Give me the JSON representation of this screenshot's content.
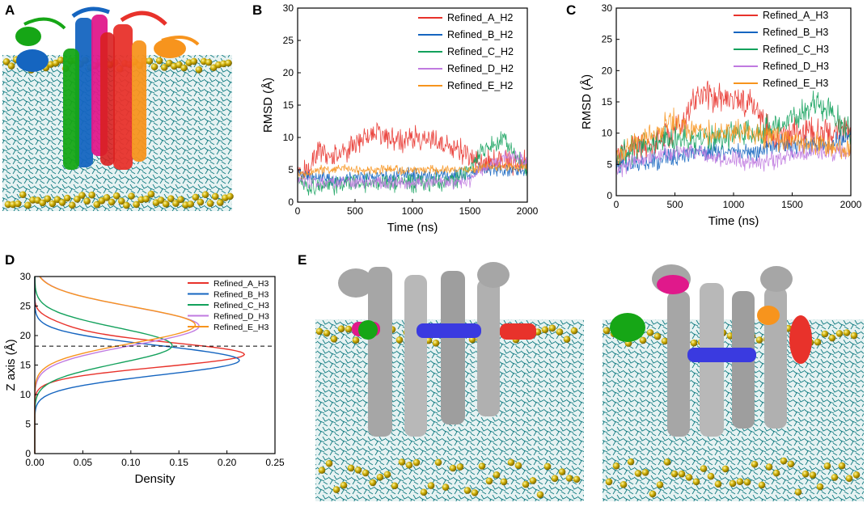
{
  "panels": {
    "a": {
      "label": "A"
    },
    "b": {
      "label": "B"
    },
    "c": {
      "label": "C"
    },
    "d": {
      "label": "D"
    },
    "e": {
      "label": "E"
    }
  },
  "series_colors": [
    "#e8322b",
    "#1565c0",
    "#13a15c",
    "#c07ae0",
    "#f7941d"
  ],
  "chart_data": [
    {
      "id": "b",
      "type": "line",
      "xlabel": "Time (ns)",
      "ylabel": "RMSD (Å)",
      "xlim": [
        0,
        2000
      ],
      "ylim": [
        0,
        30
      ],
      "xticks": [
        "0",
        "500",
        "1000",
        "1500",
        "2000"
      ],
      "yticks": [
        "0",
        "5",
        "10",
        "15",
        "20",
        "25",
        "30"
      ],
      "legend_position": "top-right",
      "series": [
        {
          "name": "Refined_A_H2",
          "color": "#e8322b",
          "x": [
            0,
            100,
            200,
            300,
            400,
            500,
            600,
            700,
            800,
            900,
            1000,
            1100,
            1200,
            1300,
            1400,
            1500,
            1600,
            1700,
            1800,
            1900,
            2000
          ],
          "values": [
            4,
            5.5,
            8,
            7,
            8,
            9,
            10,
            11,
            10,
            9.5,
            10,
            10,
            9.5,
            9,
            8,
            7,
            6,
            6,
            6.5,
            6,
            6
          ],
          "noise": 1.6
        },
        {
          "name": "Refined_B_H2",
          "color": "#1565c0",
          "x": [
            0,
            100,
            200,
            300,
            400,
            500,
            600,
            700,
            800,
            900,
            1000,
            1100,
            1200,
            1300,
            1400,
            1500,
            1600,
            1700,
            1800,
            1900,
            2000
          ],
          "values": [
            5,
            4,
            4,
            3.5,
            3.5,
            4,
            4,
            4,
            4,
            4.5,
            4,
            4,
            4,
            4,
            4,
            4.5,
            5,
            5,
            5,
            5,
            5
          ],
          "noise": 0.9
        },
        {
          "name": "Refined_C_H2",
          "color": "#13a15c",
          "x": [
            0,
            100,
            200,
            300,
            400,
            500,
            600,
            700,
            800,
            900,
            1000,
            1100,
            1200,
            1300,
            1400,
            1500,
            1600,
            1700,
            1800,
            1900,
            2000
          ],
          "values": [
            3,
            2.5,
            2.5,
            2.5,
            3,
            3,
            3,
            3,
            3,
            3,
            3,
            3,
            3,
            3,
            3.5,
            5,
            8,
            9,
            9.5,
            7,
            5
          ],
          "noise": 1.2
        },
        {
          "name": "Refined_D_H2",
          "color": "#c07ae0",
          "x": [
            0,
            100,
            200,
            300,
            400,
            500,
            600,
            700,
            800,
            900,
            1000,
            1100,
            1200,
            1300,
            1400,
            1500,
            1600,
            1700,
            1800,
            1900,
            2000
          ],
          "values": [
            3.5,
            3,
            3,
            3,
            3,
            3,
            3,
            3,
            3,
            3,
            3,
            3,
            3,
            3,
            3,
            3.5,
            5,
            6,
            7,
            7,
            6
          ],
          "noise": 0.9
        },
        {
          "name": "Refined_E_H2",
          "color": "#f7941d",
          "x": [
            0,
            100,
            200,
            300,
            400,
            500,
            600,
            700,
            800,
            900,
            1000,
            1100,
            1200,
            1300,
            1400,
            1500,
            1600,
            1700,
            1800,
            1900,
            2000
          ],
          "values": [
            4.5,
            4.5,
            5,
            5,
            5.5,
            5,
            5,
            5,
            5,
            5,
            5,
            5,
            5,
            5,
            5,
            5,
            5.5,
            5.5,
            5.5,
            5.5,
            5.5
          ],
          "noise": 0.6
        }
      ]
    },
    {
      "id": "c",
      "type": "line",
      "xlabel": "Time (ns)",
      "ylabel": "RMSD (Å)",
      "xlim": [
        0,
        2000
      ],
      "ylim": [
        0,
        30
      ],
      "xticks": [
        "0",
        "500",
        "1000",
        "1500",
        "2000"
      ],
      "yticks": [
        "0",
        "5",
        "10",
        "15",
        "20",
        "25",
        "30"
      ],
      "legend_position": "top-right",
      "series": [
        {
          "name": "Refined_A_H3",
          "color": "#e8322b",
          "x": [
            0,
            100,
            200,
            300,
            400,
            500,
            600,
            700,
            800,
            900,
            1000,
            1100,
            1200,
            1300,
            1400,
            1500,
            1600,
            1700,
            1800,
            1900,
            2000
          ],
          "values": [
            6,
            8,
            8,
            8,
            9,
            10,
            13,
            16,
            16,
            16,
            16,
            15,
            14,
            10,
            9,
            10,
            10,
            10,
            10,
            11,
            10
          ],
          "noise": 2.0
        },
        {
          "name": "Refined_B_H3",
          "color": "#1565c0",
          "x": [
            0,
            100,
            200,
            300,
            400,
            500,
            600,
            700,
            800,
            900,
            1000,
            1100,
            1200,
            1300,
            1400,
            1500,
            1600,
            1700,
            1800,
            1900,
            2000
          ],
          "values": [
            4,
            5,
            5,
            5.5,
            6,
            6,
            6.5,
            7,
            7,
            7,
            7,
            7,
            7,
            8,
            8,
            8,
            8,
            8,
            8,
            9,
            10
          ],
          "noise": 1.3
        },
        {
          "name": "Refined_C_H3",
          "color": "#13a15c",
          "x": [
            0,
            100,
            200,
            300,
            400,
            500,
            600,
            700,
            800,
            900,
            1000,
            1100,
            1200,
            1300,
            1400,
            1500,
            1600,
            1700,
            1800,
            1900,
            2000
          ],
          "values": [
            6,
            7,
            8,
            8,
            9,
            9,
            9,
            9,
            9,
            9,
            10,
            10,
            10,
            11,
            12,
            12,
            14,
            15,
            14,
            12,
            10
          ],
          "noise": 1.8
        },
        {
          "name": "Refined_D_H3",
          "color": "#c07ae0",
          "x": [
            0,
            100,
            200,
            300,
            400,
            500,
            600,
            700,
            800,
            900,
            1000,
            1100,
            1200,
            1300,
            1400,
            1500,
            1600,
            1700,
            1800,
            1900,
            2000
          ],
          "values": [
            4,
            5,
            5.5,
            6,
            6.5,
            7,
            7,
            7,
            6.5,
            6,
            6,
            5.5,
            5,
            5.5,
            6,
            6.5,
            7,
            7,
            7,
            7,
            7
          ],
          "noise": 1.2
        },
        {
          "name": "Refined_E_H3",
          "color": "#f7941d",
          "x": [
            0,
            100,
            200,
            300,
            400,
            500,
            600,
            700,
            800,
            900,
            1000,
            1100,
            1200,
            1300,
            1400,
            1500,
            1600,
            1700,
            1800,
            1900,
            2000
          ],
          "values": [
            6,
            8,
            9,
            9.5,
            11,
            12,
            11,
            10.5,
            10,
            10,
            10,
            10,
            10,
            9.5,
            9,
            9,
            8.5,
            8,
            8,
            7.5,
            7.5
          ],
          "noise": 1.6
        }
      ]
    },
    {
      "id": "d",
      "type": "line",
      "xlabel": "Density",
      "ylabel": "Z axis (Å)",
      "xlim": [
        0,
        0.25
      ],
      "ylim": [
        0,
        30
      ],
      "xticks": [
        "0.00",
        "0.05",
        "0.10",
        "0.15",
        "0.20",
        "0.25"
      ],
      "yticks": [
        "0",
        "5",
        "10",
        "15",
        "20",
        "25",
        "30"
      ],
      "reference_line_z": 18.2,
      "legend_position": "top-right",
      "series": [
        {
          "name": "Refined_A_H3",
          "color": "#e8322b",
          "z_center": 16.8,
          "peak": 0.218,
          "width": 2.1,
          "shoulder_z": 21.5,
          "shoulder_peak": 0.02
        },
        {
          "name": "Refined_B_H3",
          "color": "#1565c0",
          "z_center": 15.8,
          "peak": 0.213,
          "width": 2.5,
          "shoulder_z": 0,
          "shoulder_peak": 0
        },
        {
          "name": "Refined_C_H3",
          "color": "#13a15c",
          "z_center": 18.3,
          "peak": 0.143,
          "width": 3.0,
          "shoulder_z": 0,
          "shoulder_peak": 0
        },
        {
          "name": "Refined_D_H3",
          "color": "#c07ae0",
          "z_center": 21.6,
          "peak": 0.171,
          "width": 3.2,
          "shoulder_z": 0,
          "shoulder_peak": 0
        },
        {
          "name": "Refined_E_H3",
          "color": "#f7941d",
          "z_center": 21.8,
          "peak": 0.167,
          "width": 3.1,
          "shoulder_z": 0,
          "shoulder_peak": 0
        }
      ]
    }
  ]
}
